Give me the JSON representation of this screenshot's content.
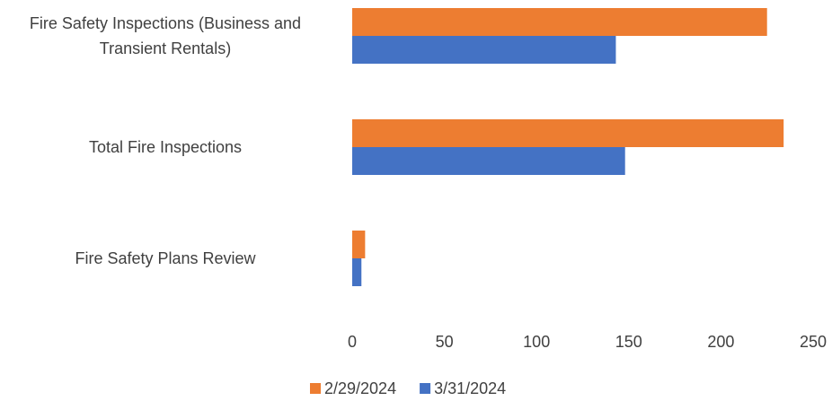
{
  "chart_data": {
    "type": "barh",
    "categories": [
      "Fire Safety Inspections (Business and Transient Rentals)",
      "Total Fire Inspections",
      "Fire Safety Plans Review"
    ],
    "series": [
      {
        "name": "2/29/2024",
        "color": "#ed7d31",
        "values": [
          225,
          234,
          7
        ]
      },
      {
        "name": "3/31/2024",
        "color": "#4472c4",
        "values": [
          143,
          148,
          5
        ]
      }
    ],
    "xlim": [
      0,
      250
    ],
    "xticks": [
      0,
      50,
      100,
      150,
      200,
      250
    ],
    "grid": false,
    "legend": "bottom"
  }
}
